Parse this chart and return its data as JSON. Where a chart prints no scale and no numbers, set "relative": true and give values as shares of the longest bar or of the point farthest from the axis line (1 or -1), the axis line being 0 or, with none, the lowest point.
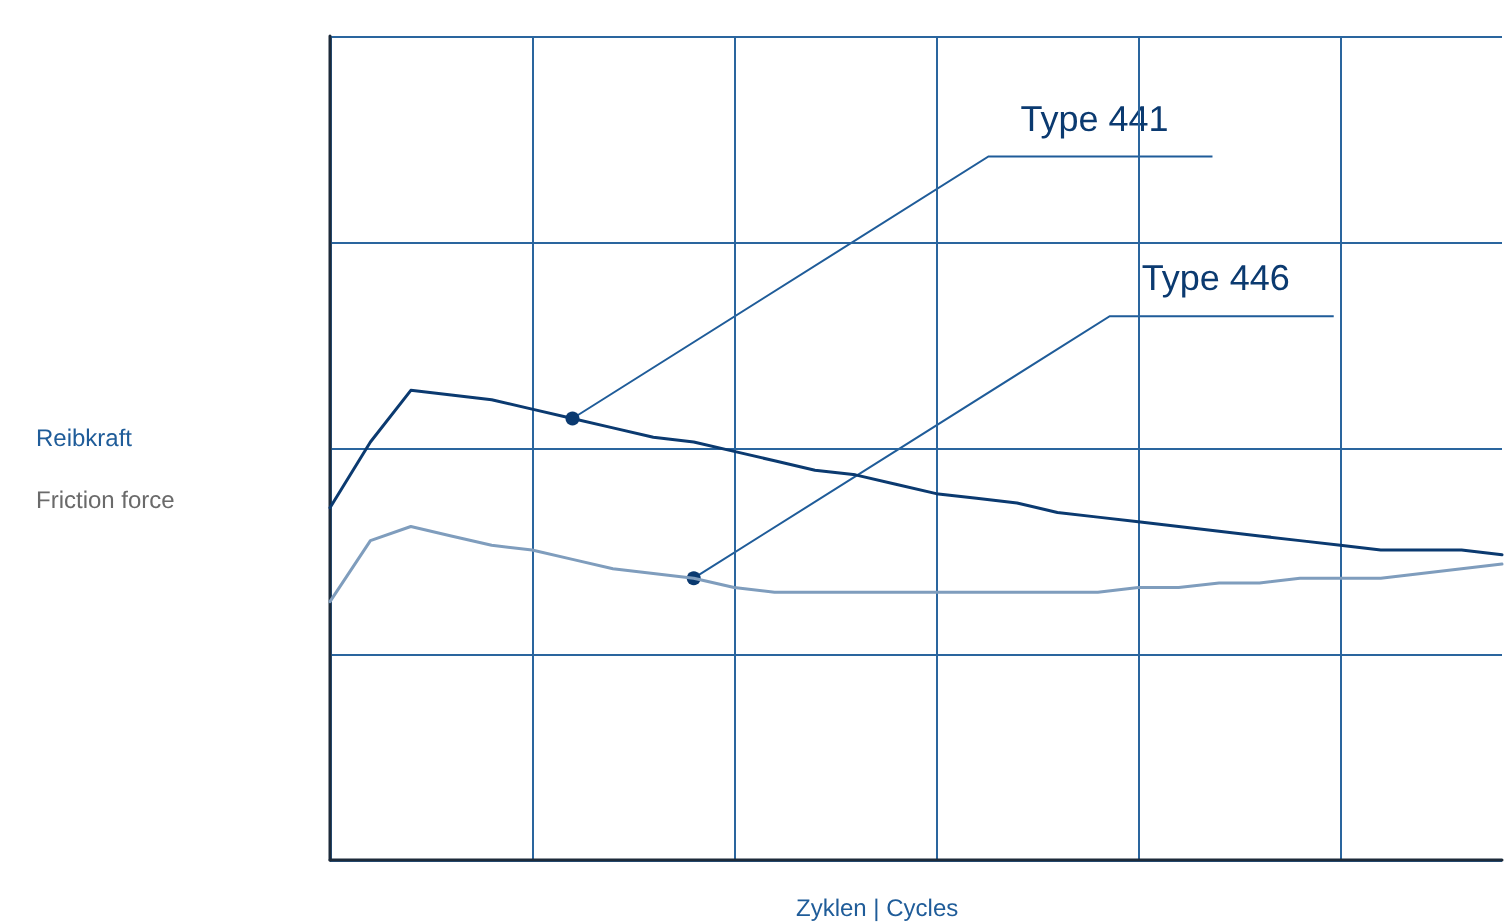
{
  "chart_data": {
    "type": "line",
    "relative": true,
    "xlabel": "Zyklen | Cycles",
    "ylabel": "Reibkraft\nFriction force",
    "categories": [
      null,
      null,
      null,
      null,
      null,
      null,
      null,
      null,
      null,
      null,
      null,
      null,
      null,
      null,
      null,
      null,
      null,
      null,
      null,
      null,
      null,
      null,
      null,
      null,
      null,
      null,
      null,
      null,
      null,
      null
    ],
    "series": [
      {
        "name": "Type 441",
        "color": "#0b3a70",
        "values": [
          0.75,
          0.89,
          1.0,
          0.99,
          0.98,
          0.96,
          0.94,
          0.92,
          0.9,
          0.89,
          0.87,
          0.85,
          0.83,
          0.82,
          0.8,
          0.78,
          0.77,
          0.76,
          0.74,
          0.73,
          0.72,
          0.71,
          0.7,
          0.69,
          0.68,
          0.67,
          0.66,
          0.66,
          0.66,
          0.65
        ]
      },
      {
        "name": "Type 446",
        "color": "#7f9dbd",
        "values": [
          0.55,
          0.68,
          0.71,
          0.69,
          0.67,
          0.66,
          0.64,
          0.62,
          0.61,
          0.6,
          0.58,
          0.57,
          0.57,
          0.57,
          0.57,
          0.57,
          0.57,
          0.57,
          0.57,
          0.57,
          0.58,
          0.58,
          0.59,
          0.59,
          0.6,
          0.6,
          0.6,
          0.61,
          0.62,
          0.63
        ]
      }
    ],
    "grid": true,
    "legend": false,
    "marker": "none",
    "line_style": "solid"
  }
}
